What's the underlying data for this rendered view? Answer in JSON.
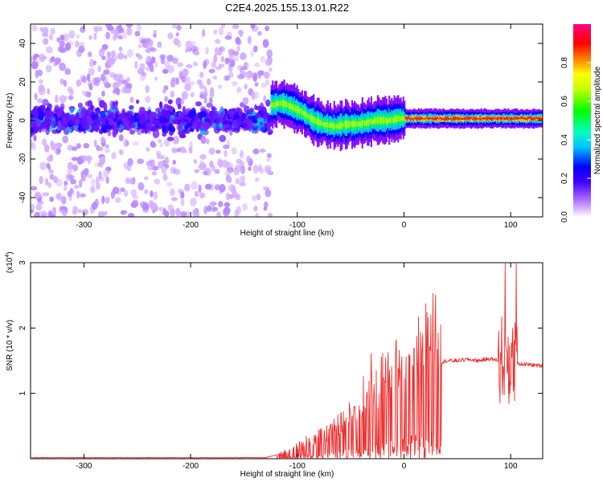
{
  "title": "C2E4.2025.155.13.01.R22",
  "chart_data": [
    {
      "type": "heatmap",
      "xlabel": "Height of straight line (km)",
      "ylabel": "Frequency (Hz)",
      "xlim": [
        -350,
        130
      ],
      "ylim": [
        -50,
        50
      ],
      "xticks": [
        -300,
        -200,
        -100,
        0,
        100
      ],
      "yticks": [
        -40,
        -20,
        0,
        20,
        40
      ],
      "colorbar": {
        "label": "Normalized spectral amplitude",
        "ticks": [
          0.0,
          0.2,
          0.4,
          0.6,
          0.8
        ],
        "tick_labels": [
          "0.0",
          "0.2",
          "0.4",
          "0.6",
          "0.8"
        ],
        "range": [
          0,
          1
        ],
        "colormap": [
          "#ffffff",
          "#c080ff",
          "#8000ff",
          "#0000ff",
          "#00ffff",
          "#00ff00",
          "#ffff00",
          "#ff8000",
          "#ff0000",
          "#ff00c0"
        ]
      },
      "ridge": {
        "x": [
          -125,
          -115,
          -105,
          -95,
          -85,
          -75,
          -65,
          -55,
          -45,
          -35,
          -25,
          -15,
          -5,
          5,
          50,
          95,
          100,
          130
        ],
        "y": [
          8,
          9,
          7,
          4,
          0,
          -2,
          -3,
          -2,
          -2,
          -1,
          0,
          0,
          1,
          1,
          1,
          1,
          1,
          1
        ]
      }
    },
    {
      "type": "line",
      "xlabel": "Height of straight line (km)",
      "ylabel": "SNR (10 * v/v)",
      "scale_label": "(x10",
      "scale_exp": "4",
      "xlim": [
        -350,
        130
      ],
      "ylim": [
        0,
        30000
      ],
      "xticks": [
        -300,
        -200,
        -100,
        0,
        100
      ],
      "yticks": [
        10000,
        20000,
        30000
      ],
      "ytick_labels": [
        "1",
        "2",
        "3"
      ],
      "series": [
        {
          "color": "#ee3030",
          "x": [
            -350,
            -200,
            -130,
            -110,
            -100,
            -90,
            -80,
            -70,
            -60,
            -50,
            -40,
            -30,
            -20,
            -10,
            0,
            10,
            20,
            30,
            40,
            50,
            60,
            70,
            80,
            90,
            95,
            100,
            103,
            105,
            110,
            130
          ],
          "y": [
            0,
            0,
            0,
            800,
            1500,
            2000,
            2500,
            3000,
            4000,
            5000,
            6000,
            8000,
            9000,
            10000,
            11000,
            12500,
            13500,
            14500,
            15000,
            15000,
            15200,
            15000,
            15300,
            15000,
            15500,
            15000,
            14000,
            14500,
            14500,
            14200
          ]
        }
      ]
    }
  ]
}
